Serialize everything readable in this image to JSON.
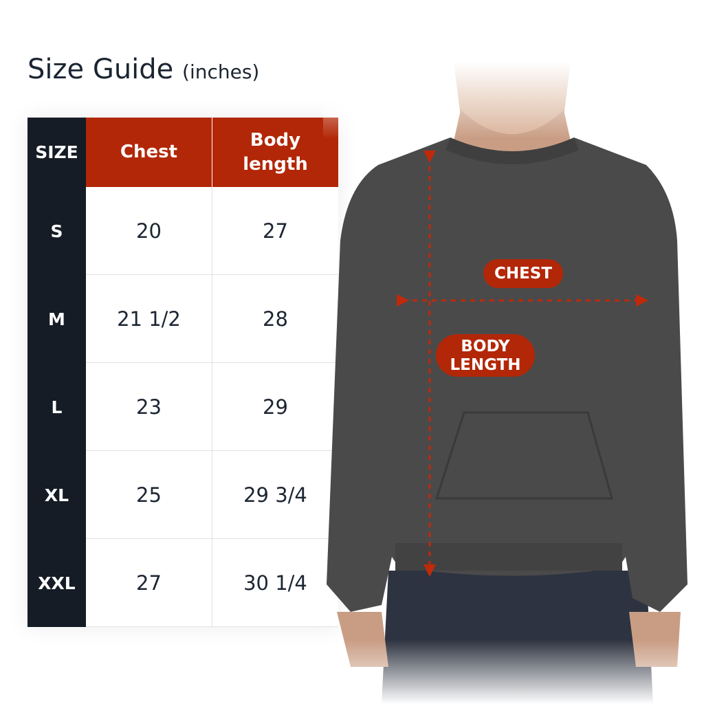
{
  "title": {
    "main": "Size Guide",
    "unit": "(inches)"
  },
  "table": {
    "headers": [
      "SIZE",
      "Chest",
      "Body length"
    ],
    "rows": [
      {
        "size": "S",
        "chest": "20",
        "body_length": "27"
      },
      {
        "size": "M",
        "chest": "21 1/2",
        "body_length": "28"
      },
      {
        "size": "L",
        "chest": "23",
        "body_length": "29"
      },
      {
        "size": "XL",
        "chest": "25",
        "body_length": "29 3/4"
      },
      {
        "size": "XXL",
        "chest": "27",
        "body_length": "30 1/4"
      }
    ]
  },
  "figure": {
    "chest_label": "CHEST",
    "body_length_label": "BODY LENGTH"
  },
  "colors": {
    "accent": "#b22707",
    "dark": "#151c25",
    "sweatshirt": "#4a4a4a"
  }
}
